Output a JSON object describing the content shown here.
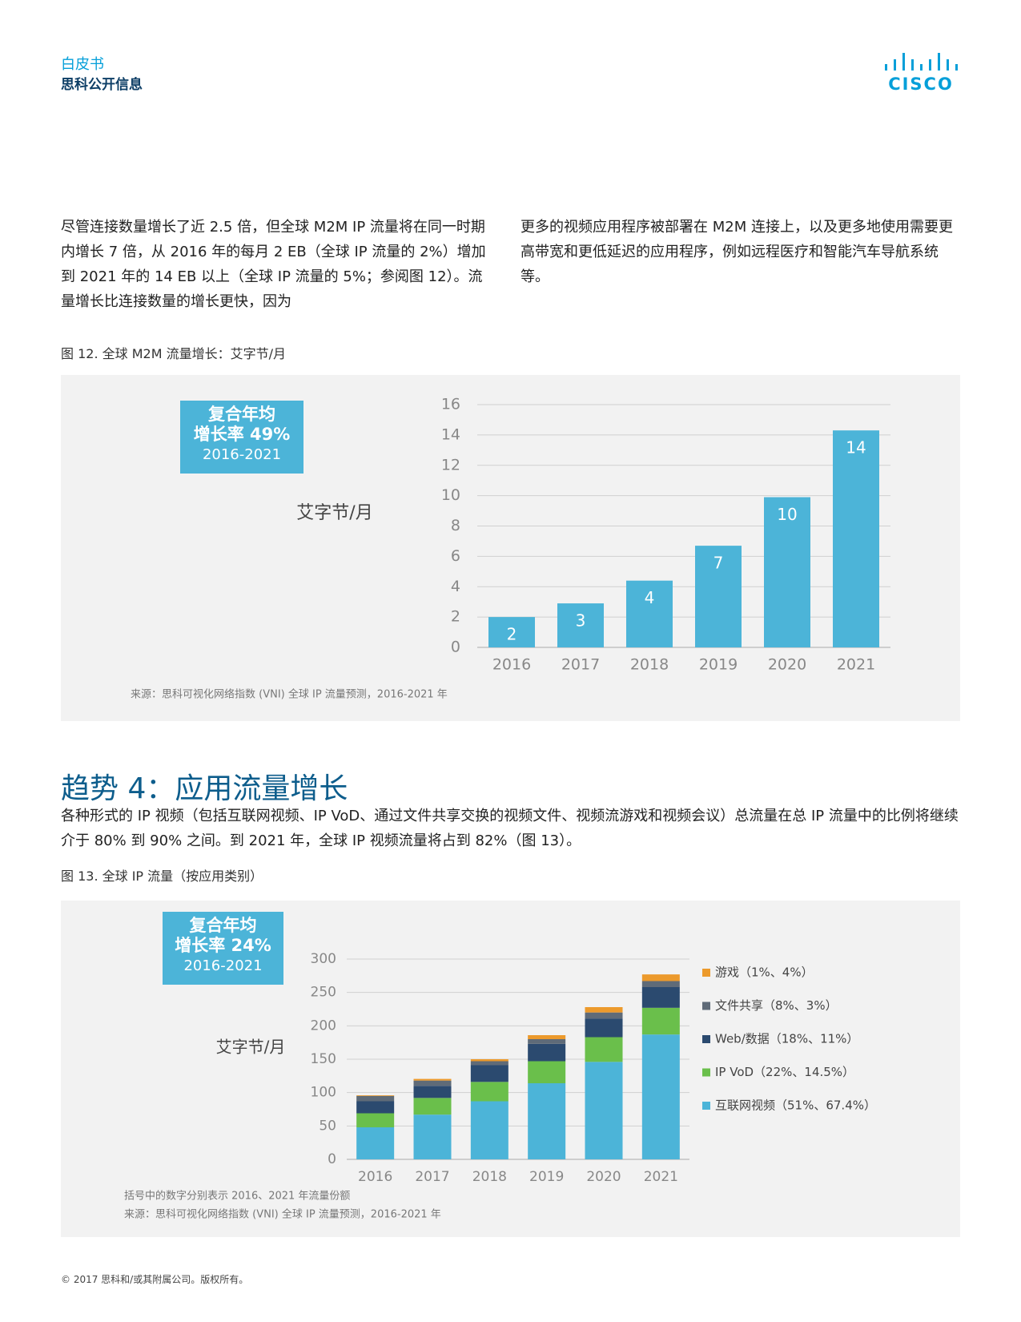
{
  "header": {
    "label": "白皮书",
    "company": "思科公开信息",
    "logo": "CISCO"
  },
  "intro": {
    "left": "尽管连接数量增长了近 2.5 倍，但全球 M2M IP 流量将在同一时期内增长 7 倍，从 2016 年的每月 2 EB（全球 IP 流量的 2%）增加到 2021 年的 14 EB 以上（全球 IP 流量的 5%；参阅图 12）。流量增长比连接数量的增长更快，因为",
    "right": "更多的视频应用程序被部署在 M2M 连接上，以及更多地使用需要更高带宽和更低延迟的应用程序，例如远程医疗和智能汽车导航系统等。"
  },
  "section": {
    "heading": "趋势 4：应用流量增长",
    "text": "各种形式的 IP 视频（包括互联网视频、IP VoD、通过文件共享交换的视频文件、视频流游戏和视频会议）总流量在总 IP 流量中的比例将继续介于 80% 到 90% 之间。到 2021 年，全球 IP 视频流量将占到 82%（图 13）。"
  },
  "footer": "© 2017 思科和/或其附属公司。版权所有。",
  "chart_data": [
    {
      "type": "bar",
      "title": "图 12. 全球 M2M 流量增长：艾字节/月",
      "annotations": [
        "复合年均",
        "增长率 49%",
        "2016-2021"
      ],
      "y_label": "艾字节/月",
      "notes": [
        "来源：思科可视化网络指数 (VNI) 全球 IP 流量预测，2016-2021 年"
      ],
      "categories": [
        "2016",
        "2017",
        "2018",
        "2019",
        "2020",
        "2021"
      ],
      "values": [
        2,
        2.9,
        4.4,
        6.7,
        9.9,
        14.3
      ],
      "value_labels": [
        "2",
        "3",
        "4",
        "7",
        "10",
        "14"
      ],
      "color": "#4cb4d8",
      "ylim": [
        0,
        16
      ],
      "yticks": [
        0,
        2,
        4,
        6,
        8,
        10,
        12,
        14,
        16
      ],
      "grid": true
    },
    {
      "type": "stacked_bar",
      "title": "图 13. 全球 IP 流量（按应用类别）",
      "annotations": [
        "复合年均",
        "增长率 24%",
        "2016-2021"
      ],
      "y_label": "艾字节/月",
      "notes": [
        "括号中的数字分别表示 2016、2021 年流量份额",
        "来源：思科可视化网络指数 (VNI) 全球 IP 流量预测，2016-2021 年"
      ],
      "categories": [
        "2016",
        "2017",
        "2018",
        "2019",
        "2020",
        "2021"
      ],
      "series": [
        {
          "name": "互联网视频（51%、67.4%）",
          "color": "#4cb4d8",
          "values": [
            48,
            67,
            87,
            114,
            146,
            187
          ]
        },
        {
          "name": "IP VoD（22%、14.5%）",
          "color": "#6abf4b",
          "values": [
            21,
            25,
            29,
            33,
            37,
            40
          ]
        },
        {
          "name": "Web/数据（18%、11%）",
          "color": "#2b4a6f",
          "values": [
            18,
            18,
            25,
            26,
            28,
            31
          ]
        },
        {
          "name": "文件共享（8%、3%）",
          "color": "#5f6b78",
          "values": [
            8,
            8,
            6,
            7,
            9,
            9
          ]
        },
        {
          "name": "游戏（1%、4%）",
          "color": "#ec9a2c",
          "values": [
            1,
            2.5,
            3,
            6,
            8,
            10
          ]
        }
      ],
      "ylim": [
        0,
        300
      ],
      "yticks": [
        0,
        50,
        100,
        150,
        200,
        250,
        300
      ],
      "grid": true
    }
  ]
}
